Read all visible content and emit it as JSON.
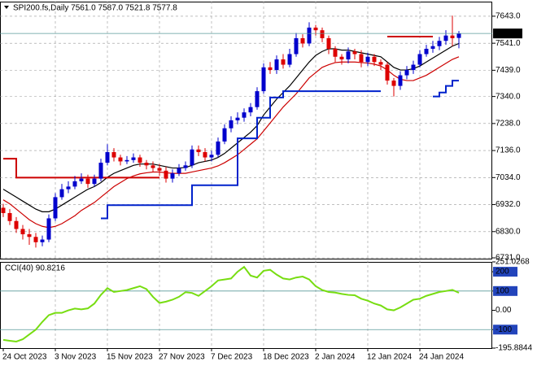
{
  "chart_data": [
    {
      "type": "candlestick",
      "title": "SPI200.fs,Daily  7561.0 7587.0 7521.8 7577.8",
      "categories": [
        "24 Oct 2023",
        null,
        null,
        null,
        null,
        null,
        null,
        null,
        "3 Nov 2023",
        null,
        null,
        null,
        null,
        null,
        null,
        null,
        "15 Nov 2023",
        null,
        null,
        null,
        null,
        null,
        null,
        null,
        "27 Nov 2023",
        null,
        null,
        null,
        null,
        null,
        null,
        null,
        "7 Dec 2023",
        null,
        null,
        null,
        null,
        null,
        null,
        null,
        "18 Dec 2023",
        null,
        null,
        null,
        null,
        null,
        null,
        null,
        "2 Jan 2024",
        null,
        null,
        null,
        null,
        null,
        null,
        null,
        "12 Jan 2024",
        null,
        null,
        null,
        null,
        null,
        null,
        null,
        "24 Jan 2024",
        null,
        null,
        null,
        null,
        null,
        null
      ],
      "open": [
        6920,
        6900,
        6870,
        6840,
        6820,
        6810,
        6790,
        6800,
        6880,
        6960,
        6990,
        7000,
        7020,
        7030,
        7010,
        7030,
        7090,
        7130,
        7110,
        7095,
        7100,
        7110,
        7090,
        7080,
        7070,
        7060,
        7030,
        7050,
        7070,
        7080,
        7140,
        7130,
        7110,
        7120,
        7170,
        7220,
        7250,
        7260,
        7280,
        7300,
        7360,
        7450,
        7440,
        7480,
        7460,
        7500,
        7560,
        7540,
        7600,
        7590,
        7560,
        7520,
        7490,
        7480,
        7510,
        7500,
        7470,
        7490,
        7470,
        7460,
        7400,
        7380,
        7420,
        7440,
        7460,
        7500,
        7520,
        7530,
        7550,
        7570,
        7561.0
      ],
      "high": [
        6935,
        6915,
        6885,
        6855,
        6840,
        6825,
        6815,
        6895,
        6975,
        7010,
        7020,
        7040,
        7050,
        7045,
        7045,
        7105,
        7160,
        7145,
        7120,
        7115,
        7125,
        7120,
        7100,
        7095,
        7085,
        7075,
        7065,
        7085,
        7095,
        7155,
        7155,
        7145,
        7135,
        7185,
        7235,
        7265,
        7280,
        7295,
        7315,
        7375,
        7465,
        7470,
        7495,
        7500,
        7520,
        7580,
        7575,
        7620,
        7610,
        7600,
        7570,
        7530,
        7500,
        7525,
        7520,
        7515,
        7505,
        7500,
        7480,
        7470,
        7410,
        7435,
        7455,
        7475,
        7515,
        7535,
        7550,
        7565,
        7590,
        7645,
        7587.0
      ],
      "low": [
        6885,
        6855,
        6825,
        6800,
        6780,
        6770,
        6775,
        6790,
        6870,
        6950,
        6975,
        6990,
        7010,
        6995,
        7000,
        7020,
        7080,
        7095,
        7080,
        7085,
        7090,
        7075,
        7065,
        7055,
        7040,
        7015,
        7015,
        7040,
        7060,
        7070,
        7115,
        7095,
        7095,
        7110,
        7160,
        7205,
        7235,
        7245,
        7265,
        7290,
        7350,
        7425,
        7425,
        7445,
        7450,
        7490,
        7525,
        7530,
        7570,
        7545,
        7500,
        7470,
        7460,
        7465,
        7480,
        7450,
        7455,
        7455,
        7440,
        7385,
        7340,
        7365,
        7405,
        7425,
        7450,
        7490,
        7505,
        7515,
        7535,
        7530,
        7521.8
      ],
      "close": [
        6900,
        6870,
        6840,
        6820,
        6810,
        6790,
        6800,
        6880,
        6960,
        6990,
        7000,
        7020,
        7030,
        7010,
        7030,
        7090,
        7130,
        7110,
        7095,
        7100,
        7110,
        7090,
        7080,
        7070,
        7060,
        7030,
        7050,
        7070,
        7080,
        7140,
        7130,
        7110,
        7120,
        7170,
        7220,
        7250,
        7260,
        7280,
        7300,
        7360,
        7450,
        7440,
        7480,
        7460,
        7500,
        7560,
        7540,
        7600,
        7590,
        7560,
        7520,
        7490,
        7480,
        7510,
        7500,
        7470,
        7490,
        7470,
        7460,
        7400,
        7380,
        7420,
        7440,
        7460,
        7500,
        7520,
        7530,
        7550,
        7570,
        7560,
        7577.8
      ],
      "up_color": "#0000cc",
      "down_color": "#dd0000",
      "overlays": [
        {
          "color": "#000000",
          "values": [
            6990,
            6975,
            6960,
            6945,
            6930,
            6915,
            6905,
            6905,
            6915,
            6930,
            6945,
            6960,
            6975,
            6990,
            7000,
            7015,
            7035,
            7050,
            7060,
            7070,
            7080,
            7085,
            7085,
            7085,
            7080,
            7075,
            7070,
            7070,
            7072,
            7080,
            7090,
            7095,
            7100,
            7110,
            7125,
            7145,
            7165,
            7185,
            7205,
            7230,
            7270,
            7300,
            7330,
            7355,
            7380,
            7410,
            7440,
            7470,
            7495,
            7510,
            7520,
            7520,
            7515,
            7515,
            7510,
            7505,
            7500,
            7495,
            7490,
            7470,
            7450,
            7440,
            7440,
            7445,
            7455,
            7470,
            7485,
            7500,
            7515,
            7530,
            7540
          ]
        },
        {
          "color": "#cc0000",
          "values": [
            6950,
            6935,
            6915,
            6895,
            6875,
            6860,
            6850,
            6845,
            6850,
            6860,
            6875,
            6890,
            6910,
            6925,
            6940,
            6960,
            6980,
            7000,
            7015,
            7030,
            7040,
            7048,
            7052,
            7055,
            7055,
            7052,
            7050,
            7050,
            7050,
            7055,
            7060,
            7065,
            7070,
            7078,
            7090,
            7105,
            7120,
            7140,
            7160,
            7180,
            7210,
            7240,
            7270,
            7300,
            7325,
            7350,
            7380,
            7410,
            7430,
            7450,
            7460,
            7468,
            7470,
            7470,
            7470,
            7468,
            7466,
            7462,
            7455,
            7440,
            7420,
            7405,
            7400,
            7400,
            7410,
            7420,
            7435,
            7450,
            7465,
            7480,
            7490
          ]
        },
        {
          "color": "#0022cc",
          "width": 2,
          "step": true,
          "values": [
            null,
            null,
            null,
            null,
            null,
            null,
            null,
            null,
            null,
            null,
            null,
            null,
            null,
            null,
            null,
            6880,
            6930,
            6930,
            6930,
            6930,
            6930,
            6930,
            6930,
            6930,
            6930,
            6930,
            6930,
            6930,
            6930,
            7005,
            7005,
            7005,
            7005,
            7005,
            7005,
            7005,
            7182,
            7182,
            7182,
            7260,
            7260,
            7336,
            7336,
            7360,
            7360,
            7360,
            7360,
            7360,
            7360,
            7360,
            7360,
            7360,
            7360,
            7360,
            7360,
            7360,
            7360,
            7360,
            7360,
            null,
            null,
            null,
            null,
            null,
            null,
            null,
            7340,
            7355,
            7380,
            7400,
            7400
          ]
        },
        {
          "color": "#cc0000",
          "width": 2,
          "step": true,
          "values": [
            7105,
            7105,
            7034,
            7034,
            7034,
            7034,
            7034,
            7034,
            7034,
            7034,
            7034,
            7034,
            7034,
            7034,
            7034,
            7034,
            7034,
            7034,
            7034,
            7034,
            7034,
            7034,
            7034,
            7034,
            7034,
            null,
            null,
            null,
            null,
            null,
            null,
            null,
            null,
            null,
            null,
            null,
            null,
            null,
            null,
            null,
            null,
            null,
            null,
            null,
            null,
            null,
            null,
            null,
            null,
            null,
            null,
            null,
            null,
            null,
            null,
            null,
            null,
            null,
            null,
            7566,
            7566,
            7566,
            7566,
            7566,
            7566,
            7566,
            7566,
            null,
            null,
            null,
            null
          ]
        }
      ],
      "last_price": 7577.8,
      "ylim": [
        6728,
        7698
      ],
      "yticks": [
        {
          "value": 7643,
          "label": "7643.0"
        },
        {
          "value": 7541,
          "label": "7541.0"
        },
        {
          "value": 7439,
          "label": "7439.0"
        },
        {
          "value": 7340,
          "label": "7340.0"
        },
        {
          "value": 7238,
          "label": "7238.0"
        },
        {
          "value": 7136,
          "label": "7136.0"
        },
        {
          "value": 7034,
          "label": "7034.0"
        },
        {
          "value": 6932,
          "label": "6932.0"
        },
        {
          "value": 6830,
          "label": "6830.0"
        },
        {
          "value": 6731,
          "label": "6731.0"
        }
      ],
      "grid": true
    },
    {
      "type": "line",
      "title": "CCI(40) 90.8216",
      "color": "#77dd11",
      "values": [
        -153,
        -158,
        -162,
        -150,
        -125,
        -100,
        -60,
        -25,
        -13,
        -13,
        0,
        9,
        5,
        10,
        35,
        80,
        115,
        95,
        100,
        105,
        115,
        125,
        110,
        70,
        38,
        45,
        55,
        70,
        94,
        90,
        75,
        100,
        125,
        155,
        160,
        165,
        200,
        225,
        180,
        170,
        205,
        210,
        185,
        165,
        160,
        170,
        175,
        160,
        125,
        105,
        95,
        92,
        85,
        80,
        78,
        60,
        50,
        35,
        25,
        5,
        0,
        15,
        35,
        55,
        60,
        75,
        85,
        95,
        100,
        106,
        90.8216
      ],
      "ylim": [
        -195.8844,
        251.0268
      ],
      "yticks": [
        251.0268,
        200,
        100,
        {
          "value": 0,
          "label": "0.00"
        },
        -100,
        -195.8844
      ],
      "levels": [
        100,
        -100
      ]
    }
  ]
}
